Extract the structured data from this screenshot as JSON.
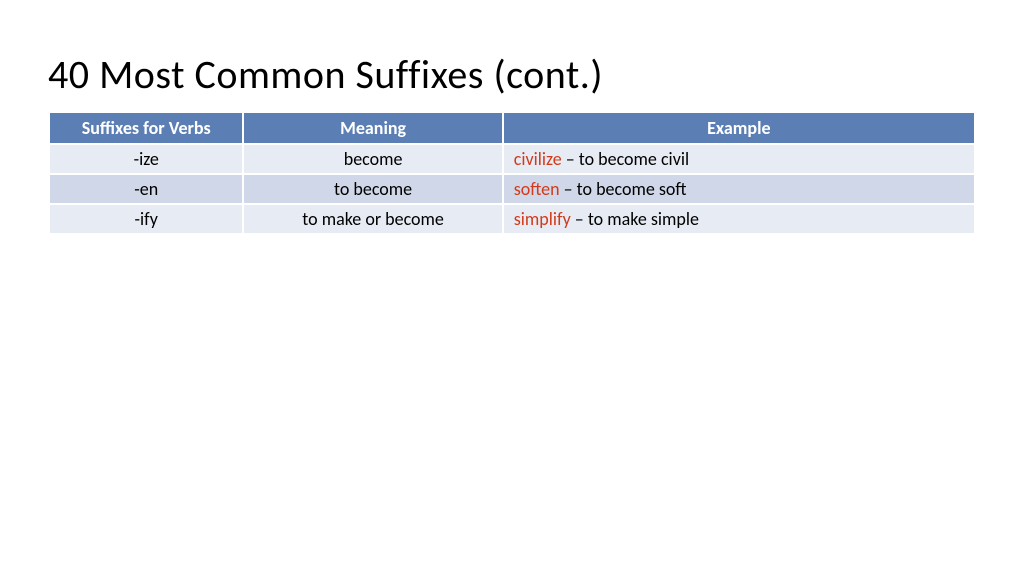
{
  "title": "40 Most Common Suffixes (cont.)",
  "table": {
    "columns": [
      "Suffixes for Verbs",
      "Meaning",
      "Example"
    ],
    "header_bg": "#5b7fb5",
    "header_text_color": "#ffffff",
    "row_odd_bg": "#e6ebf4",
    "row_even_bg": "#d0d7e8",
    "example_word_color": "#d13a1a",
    "rows": [
      {
        "suffix": "-ize",
        "meaning": "become",
        "example_word": "civilize",
        "example_rest": " – to become civil"
      },
      {
        "suffix": "-en",
        "meaning": "to become",
        "example_word": "soften",
        "example_rest": " – to become soft"
      },
      {
        "suffix": "-ify",
        "meaning": "to make or become",
        "example_word": "simplify",
        "example_rest": " – to make simple"
      }
    ]
  }
}
